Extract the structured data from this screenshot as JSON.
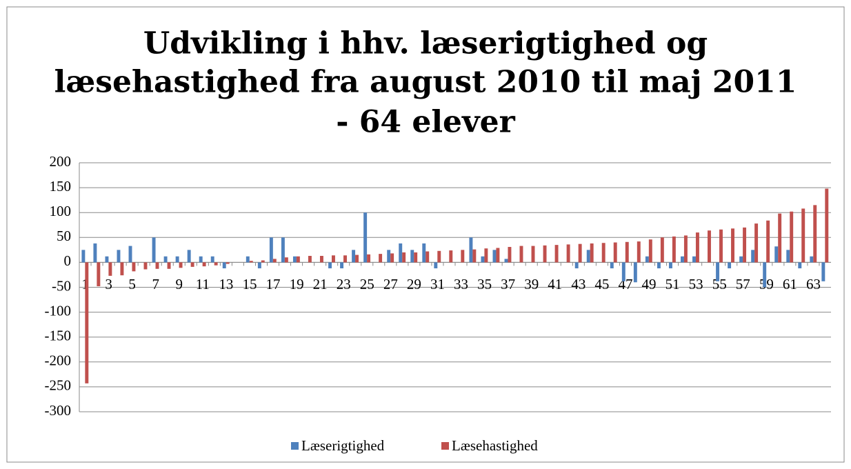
{
  "chart_data": {
    "type": "bar",
    "title": [
      "Udvikling i hhv. læserigtighed og",
      "læsehastighed fra august 2010 til maj 2011",
      "- 64 elever"
    ],
    "categories": [
      "1",
      null,
      "3",
      null,
      "5",
      null,
      "7",
      null,
      "9",
      null,
      "11",
      null,
      "13",
      null,
      "15",
      null,
      "17",
      null,
      "19",
      null,
      "21",
      null,
      "23",
      null,
      "25",
      null,
      "27",
      null,
      "29",
      null,
      "31",
      null,
      "33",
      null,
      "35",
      null,
      "37",
      null,
      "39",
      null,
      "41",
      null,
      "43",
      null,
      "45",
      null,
      "47",
      null,
      "49",
      null,
      "51",
      null,
      "53",
      null,
      "55",
      null,
      "57",
      null,
      "59",
      null,
      "61",
      null,
      "63",
      null
    ],
    "series": [
      {
        "name": "Læserigtighed",
        "color": "#4f81bd",
        "values": [
          25,
          38,
          12,
          25,
          33,
          0,
          50,
          12,
          12,
          25,
          12,
          12,
          -12,
          0,
          12,
          -12,
          50,
          50,
          12,
          0,
          0,
          -12,
          -12,
          25,
          100,
          0,
          25,
          38,
          25,
          38,
          -12,
          0,
          0,
          50,
          12,
          25,
          7,
          0,
          0,
          0,
          0,
          0,
          -12,
          25,
          0,
          -12,
          -38,
          -40,
          12,
          -12,
          -12,
          12,
          12,
          0,
          -38,
          -12,
          12,
          25,
          -50,
          32,
          25,
          -12,
          12,
          -38
        ]
      },
      {
        "name": "Læsehastighed",
        "color": "#c0504d",
        "values": [
          -243,
          -48,
          -27,
          -26,
          -18,
          -14,
          -13,
          -13,
          -11,
          -9,
          -8,
          -6,
          -3,
          0,
          3,
          4,
          7,
          10,
          12,
          13,
          13,
          14,
          14,
          15,
          16,
          17,
          18,
          20,
          20,
          22,
          23,
          24,
          25,
          26,
          28,
          29,
          31,
          33,
          33,
          34,
          35,
          36,
          37,
          38,
          39,
          40,
          41,
          42,
          46,
          50,
          52,
          54,
          60,
          64,
          66,
          68,
          70,
          78,
          84,
          98,
          102,
          108,
          115,
          148
        ]
      }
    ],
    "ylim": [
      -300,
      200
    ],
    "yticks": [
      -300,
      -250,
      -200,
      -150,
      -100,
      -50,
      0,
      50,
      100,
      150,
      200
    ],
    "grid": true,
    "legend": "bottom"
  }
}
